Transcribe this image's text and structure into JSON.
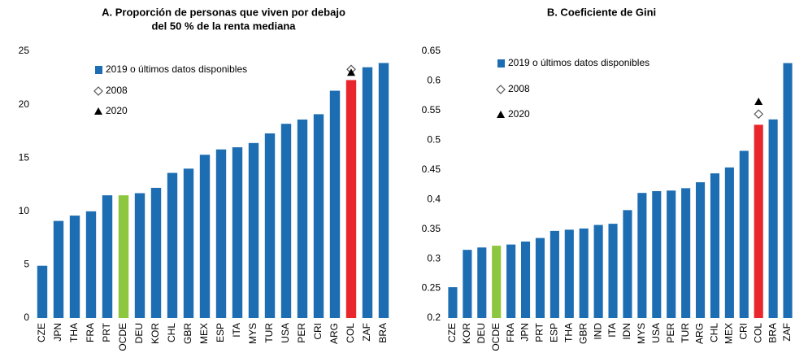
{
  "chart_data": [
    {
      "type": "bar",
      "title": [
        "A. Proporción de personas que viven por debajo",
        "del 50 % de la renta mediana"
      ],
      "categories": [
        "CZE",
        "JPN",
        "THA",
        "FRA",
        "PRT",
        "OCDE",
        "DEU",
        "KOR",
        "CHL",
        "GBR",
        "MEX",
        "ESP",
        "ITA",
        "MYS",
        "TUR",
        "USA",
        "PER",
        "CRI",
        "ARG",
        "COL",
        "ZAF",
        "BRA"
      ],
      "series": [
        {
          "name": "2019 o últimos datos disponibles",
          "color": "#1d6db3",
          "colors": [
            "#1d6db3",
            "#1d6db3",
            "#1d6db3",
            "#1d6db3",
            "#1d6db3",
            "#8dc63f",
            "#1d6db3",
            "#1d6db3",
            "#1d6db3",
            "#1d6db3",
            "#1d6db3",
            "#1d6db3",
            "#1d6db3",
            "#1d6db3",
            "#1d6db3",
            "#1d6db3",
            "#1d6db3",
            "#1d6db3",
            "#1d6db3",
            "#e8262b",
            "#1d6db3",
            "#1d6db3"
          ],
          "values": [
            4.9,
            9.1,
            9.6,
            10.0,
            11.5,
            11.5,
            11.7,
            12.2,
            13.6,
            14.0,
            15.3,
            15.8,
            16.0,
            16.4,
            17.3,
            18.2,
            18.6,
            19.1,
            21.3,
            22.3,
            23.5,
            23.9
          ]
        },
        {
          "name": "2008",
          "marker": "diamond",
          "values": [
            null,
            null,
            null,
            null,
            null,
            null,
            null,
            null,
            null,
            null,
            null,
            null,
            null,
            null,
            null,
            null,
            null,
            null,
            null,
            23.3,
            null,
            null
          ]
        },
        {
          "name": "2020",
          "marker": "triangle",
          "values": [
            null,
            null,
            null,
            null,
            null,
            null,
            null,
            null,
            null,
            null,
            null,
            null,
            null,
            null,
            null,
            null,
            null,
            null,
            null,
            23.0,
            null,
            null
          ]
        }
      ],
      "ylim": [
        0,
        25
      ],
      "yticks": [
        0,
        5,
        10,
        15,
        20,
        25
      ]
    },
    {
      "type": "bar",
      "title": [
        "B. Coeficiente de Gini"
      ],
      "categories": [
        "CZE",
        "KOR",
        "DEU",
        "OCDE",
        "FRA",
        "JPN",
        "PRT",
        "ESP",
        "THA",
        "GBR",
        "IND",
        "ITA",
        "IDN",
        "MYS",
        "USA",
        "PER",
        "TUR",
        "ARG",
        "CHL",
        "MEX",
        "CRI",
        "COL",
        "BRA",
        "ZAF"
      ],
      "series": [
        {
          "name": "2019 o últimos datos disponibles",
          "color": "#1d6db3",
          "colors": [
            "#1d6db3",
            "#1d6db3",
            "#1d6db3",
            "#8dc63f",
            "#1d6db3",
            "#1d6db3",
            "#1d6db3",
            "#1d6db3",
            "#1d6db3",
            "#1d6db3",
            "#1d6db3",
            "#1d6db3",
            "#1d6db3",
            "#1d6db3",
            "#1d6db3",
            "#1d6db3",
            "#1d6db3",
            "#1d6db3",
            "#1d6db3",
            "#1d6db3",
            "#1d6db3",
            "#e8262b",
            "#1d6db3",
            "#1d6db3"
          ],
          "values": [
            0.252,
            0.315,
            0.319,
            0.322,
            0.324,
            0.329,
            0.335,
            0.347,
            0.349,
            0.351,
            0.357,
            0.359,
            0.382,
            0.411,
            0.414,
            0.415,
            0.419,
            0.429,
            0.444,
            0.454,
            0.482,
            0.526,
            0.535,
            0.63
          ]
        },
        {
          "name": "2008",
          "marker": "diamond",
          "values": [
            null,
            null,
            null,
            null,
            null,
            null,
            null,
            null,
            null,
            null,
            null,
            null,
            null,
            null,
            null,
            null,
            null,
            null,
            null,
            null,
            null,
            0.544,
            null,
            null
          ]
        },
        {
          "name": "2020",
          "marker": "triangle",
          "values": [
            null,
            null,
            null,
            null,
            null,
            null,
            null,
            null,
            null,
            null,
            null,
            null,
            null,
            null,
            null,
            null,
            null,
            null,
            null,
            null,
            null,
            0.565,
            null,
            null
          ]
        }
      ],
      "ylim": [
        0.2,
        0.65
      ],
      "yticks": [
        0.2,
        0.25,
        0.3,
        0.35,
        0.4,
        0.45,
        0.5,
        0.55,
        0.6,
        0.65
      ]
    }
  ]
}
